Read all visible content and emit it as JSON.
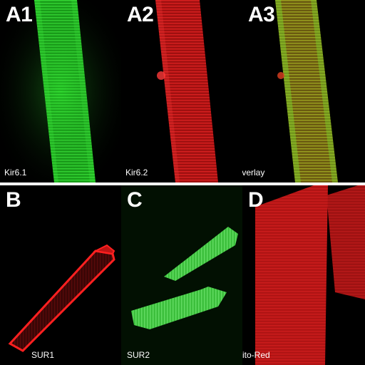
{
  "panels": {
    "a1": {
      "letter": "A1",
      "caption": "Kir6.1",
      "stain_color": "#1fd21f"
    },
    "a2": {
      "letter": "A2",
      "caption": "Kir6.2",
      "stain_color": "#e01818"
    },
    "a3": {
      "letter": "A3",
      "caption": "Overlay",
      "stain_color": "#8a8a1a"
    },
    "b": {
      "letter": "B",
      "caption": "SUR1",
      "stain_color": "#e01a1a"
    },
    "c": {
      "letter": "C",
      "caption": "SUR2",
      "stain_color": "#3cd23c"
    },
    "d": {
      "letter": "D",
      "caption": "Mito-Red",
      "stain_color": "#c81818"
    }
  }
}
